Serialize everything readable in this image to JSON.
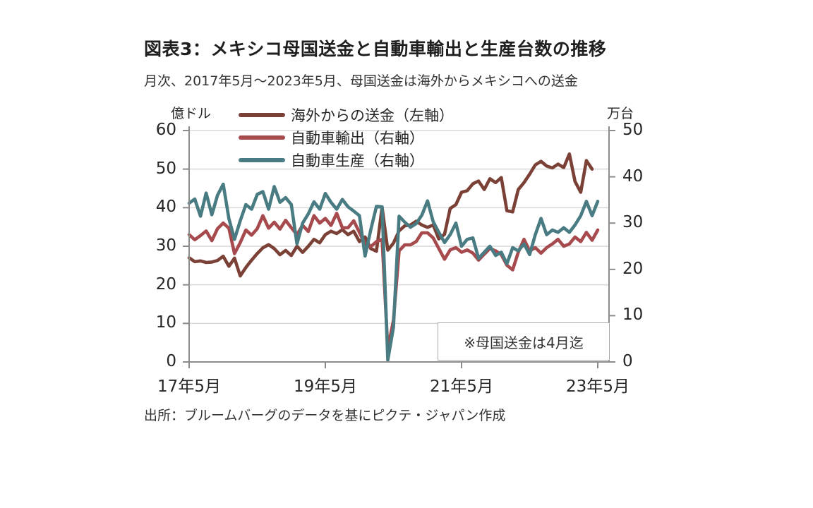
{
  "page": {
    "title": "図表3：メキシコ母国送金と自動車輸出と生産台数の推移",
    "subtitle": "月次、2017年5月～2023年5月、母国送金は海外からメキシコへの送金",
    "source": "出所：ブルームバーグのデータを基にピクテ・ジャパン作成"
  },
  "chart_data": {
    "type": "line",
    "title": "図表3：メキシコ母国送金と自動車輸出と生産台数の推移",
    "x_start": "2017-05",
    "x_end": "2023-05",
    "x_frequency": "monthly",
    "x_tick_labels": [
      "17年5月",
      "19年5月",
      "21年5月",
      "23年5月"
    ],
    "left_axis": {
      "unit": "億ドル",
      "min": 0,
      "max": 60,
      "ticks": [
        0,
        10,
        20,
        30,
        40,
        50,
        60
      ]
    },
    "right_axis": {
      "unit": "万台",
      "min": 0,
      "max": 50,
      "ticks": [
        0,
        10,
        20,
        30,
        40,
        50
      ]
    },
    "annotation": "※母国送金は4月迄",
    "grid": "horizontal",
    "legend_position": "top-inside",
    "colors": {
      "gridline": "#d9d9d9",
      "axis": "#8c8c8c",
      "text": "#262626"
    },
    "series": [
      {
        "name": "海外からの送金（左軸）",
        "axis": "left",
        "color": "#7b4137",
        "values": [
          27.0,
          26.0,
          26.2,
          25.8,
          25.9,
          26.3,
          27.4,
          24.8,
          26.9,
          22.3,
          24.5,
          26.4,
          28.1,
          29.6,
          30.4,
          29.4,
          27.8,
          28.9,
          27.6,
          30.0,
          28.4,
          30.0,
          31.8,
          30.9,
          33.0,
          33.9,
          33.3,
          34.3,
          33.0,
          33.9,
          31.2,
          32.4,
          29.4,
          28.7,
          40.1,
          29.0,
          30.8,
          34.0,
          35.3,
          35.5,
          36.5,
          35.5,
          34.9,
          35.5,
          31.9,
          33.1,
          39.8,
          40.8,
          44.0,
          44.4,
          46.2,
          46.9,
          44.7,
          47.5,
          46.5,
          47.8,
          39.2,
          38.9,
          44.7,
          46.5,
          48.7,
          51.1,
          52.0,
          50.8,
          50.3,
          51.3,
          50.4,
          53.9,
          46.8,
          44.0,
          52.2,
          50.0
        ]
      },
      {
        "name": "自動車輸出（右軸）",
        "axis": "right",
        "color": "#a64a4d",
        "values": [
          27.5,
          26.4,
          27.3,
          28.3,
          26.2,
          28.8,
          30.0,
          28.9,
          23.4,
          25.8,
          28.5,
          27.4,
          28.8,
          31.6,
          28.9,
          30.2,
          28.7,
          30.6,
          29.0,
          27.5,
          29.5,
          28.2,
          31.6,
          30.0,
          31.0,
          29.5,
          32.1,
          29.0,
          29.0,
          30.5,
          28.0,
          25.4,
          24.9,
          26.0,
          26.5,
          2.8,
          9.0,
          24.0,
          25.3,
          25.3,
          26.0,
          27.9,
          27.9,
          26.8,
          24.5,
          22.2,
          24.2,
          24.7,
          23.7,
          24.2,
          23.5,
          22.0,
          23.3,
          24.5,
          24.0,
          23.2,
          20.9,
          19.9,
          23.7,
          26.5,
          24.0,
          24.7,
          23.5,
          24.7,
          25.5,
          26.5,
          25.0,
          25.5,
          27.0,
          26.0,
          28.0,
          26.3,
          28.5
        ]
      },
      {
        "name": "自動車生産（右軸）",
        "axis": "right",
        "color": "#497b82",
        "values": [
          34.3,
          35.2,
          31.5,
          36.5,
          31.8,
          36.0,
          38.4,
          31.0,
          26.5,
          30.5,
          34.0,
          33.0,
          36.2,
          36.8,
          33.0,
          37.9,
          34.5,
          35.5,
          34.0,
          25.5,
          30.0,
          32.0,
          34.6,
          33.0,
          36.4,
          34.5,
          33.0,
          35.1,
          33.5,
          32.6,
          31.6,
          22.9,
          28.5,
          33.6,
          33.5,
          0.4,
          7.5,
          31.5,
          30.2,
          29.1,
          29.9,
          31.7,
          34.8,
          30.3,
          28.0,
          25.8,
          27.5,
          30.0,
          25.0,
          26.5,
          26.8,
          22.4,
          23.7,
          25.0,
          23.0,
          23.7,
          21.2,
          24.7,
          24.0,
          25.5,
          23.2,
          27.5,
          31.0,
          27.5,
          28.5,
          28.0,
          29.0,
          28.0,
          29.6,
          31.6,
          34.7,
          31.6,
          34.7
        ]
      }
    ]
  }
}
